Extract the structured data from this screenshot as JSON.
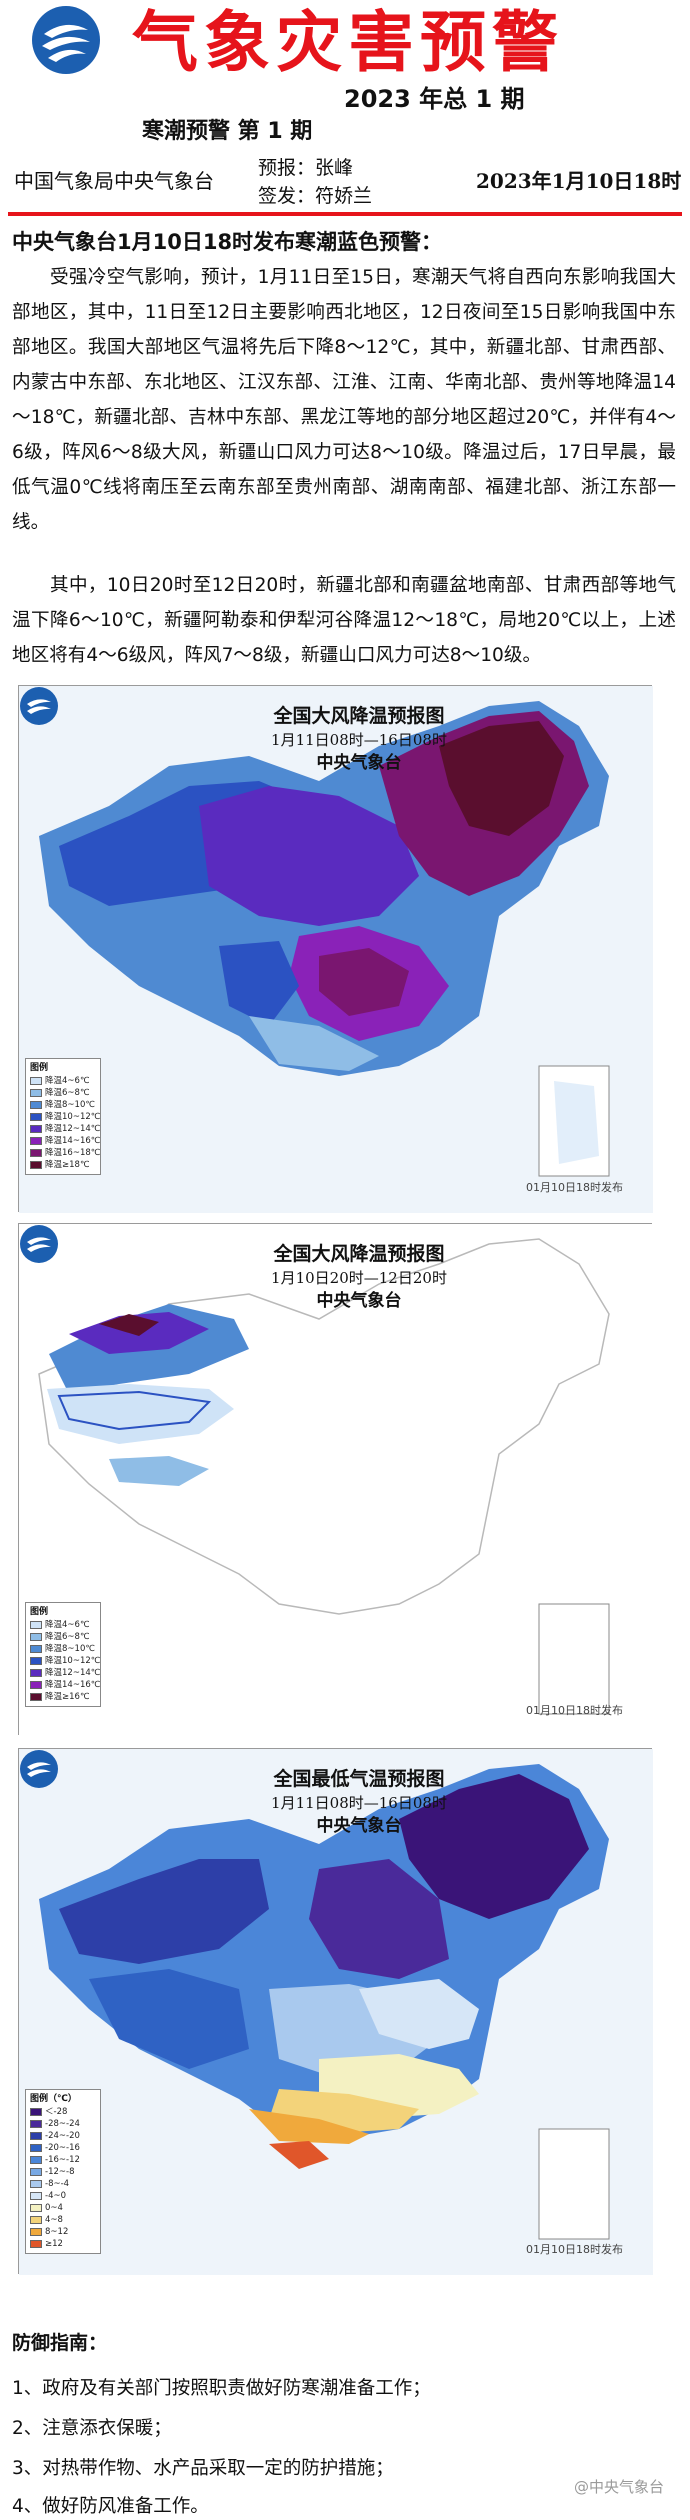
{
  "header": {
    "title": "气象灾害预警",
    "issue_year": "2023 年总 1 期",
    "issue_sub": "寒潮预警 第 1 期",
    "org": "中国气象局中央气象台",
    "forecaster": "预报：张峰",
    "signer": "签发：符娇兰",
    "date": "2023年1月10日18时",
    "brand_color": "#e6141b"
  },
  "headline": "中央气象台1月10日18时发布寒潮蓝色预警：",
  "paragraphs": [
    "受强冷空气影响，预计，1月11日至15日，寒潮天气将自西向东影响我国大部地区，其中，11日至12日主要影响西北地区，12日夜间至15日影响我国中东部地区。我国大部地区气温将先后下降8～12℃，其中，新疆北部、甘肃西部、内蒙古中东部、东北地区、江汉东部、江淮、江南、华南北部、贵州等地降温14～18℃，新疆北部、吉林中东部、黑龙江等地的部分地区超过20℃，并伴有4～6级，阵风6～8级大风，新疆山口风力可达8～10级。降温过后，17日早晨，最低气温0℃线将南压至云南东部至贵州南部、湖南南部、福建北部、浙江东部一线。",
    "其中，10日20时至12日20时，新疆北部和南疆盆地南部、甘肃西部等地气温下降6～10℃，新疆阿勒泰和伊犁河谷降温12～18℃，局地20℃以上，上述地区将有4～6级风，阵风7～8级，新疆山口风力可达8～10级。"
  ],
  "maps": [
    {
      "title": "全国大风降温预报图",
      "period": "1月11日08时—16日08时",
      "source": "中央气象台",
      "issued": "01月10日18时发布",
      "legend_title": "图例",
      "legend": [
        {
          "label": "降温4~6℃",
          "color": "#cfe3f7"
        },
        {
          "label": "降温6~8℃",
          "color": "#8fbde6"
        },
        {
          "label": "降温8~10℃",
          "color": "#4f8ad2"
        },
        {
          "label": "降温10~12℃",
          "color": "#2b52c2"
        },
        {
          "label": "降温12~14℃",
          "color": "#5a2bbf"
        },
        {
          "label": "降温14~16℃",
          "color": "#8a22b8"
        },
        {
          "label": "降温16~18℃",
          "color": "#7a1670"
        },
        {
          "label": "降温≥18℃",
          "color": "#5a0e2e"
        }
      ]
    },
    {
      "title": "全国大风降温预报图",
      "period": "1月10日20时—12日20时",
      "source": "中央气象台",
      "issued": "01月10日18时发布",
      "legend_title": "图例",
      "legend": [
        {
          "label": "降温4~6℃",
          "color": "#cfe3f7"
        },
        {
          "label": "降温6~8℃",
          "color": "#8fbde6"
        },
        {
          "label": "降温8~10℃",
          "color": "#4f8ad2"
        },
        {
          "label": "降温10~12℃",
          "color": "#2b52c2"
        },
        {
          "label": "降温12~14℃",
          "color": "#5a2bbf"
        },
        {
          "label": "降温14~16℃",
          "color": "#8a22b8"
        },
        {
          "label": "降温≥16℃",
          "color": "#5a0e2e"
        }
      ]
    },
    {
      "title": "全国最低气温预报图",
      "period": "1月11日08时—16日08时",
      "source": "中央气象台",
      "issued": "01月10日18时发布",
      "legend_title": "图例（℃）",
      "legend": [
        {
          "label": "＜-28",
          "color": "#3a1478"
        },
        {
          "label": "-28~-24",
          "color": "#4a2a9a"
        },
        {
          "label": "-24~-20",
          "color": "#2d3fa8"
        },
        {
          "label": "-20~-16",
          "color": "#2f62c4"
        },
        {
          "label": "-16~-12",
          "color": "#4b86d8"
        },
        {
          "label": "-12~-8",
          "color": "#79a9e4"
        },
        {
          "label": "-8~-4",
          "color": "#a9c9ee"
        },
        {
          "label": "-4~0",
          "color": "#d6e6f7"
        },
        {
          "label": "0~4",
          "color": "#f4f1c2"
        },
        {
          "label": "4~8",
          "color": "#f3d37a"
        },
        {
          "label": "8~12",
          "color": "#f0a93c"
        },
        {
          "label": "≥12",
          "color": "#e0562a"
        }
      ]
    }
  ],
  "guide": {
    "title": "防御指南：",
    "items": [
      "1、政府及有关部门按照职责做好防寒潮准备工作；",
      "2、注意添衣保暖；",
      "3、对热带作物、水产品采取一定的防护措施；",
      "4、做好防风准备工作。"
    ]
  },
  "watermark": "@中央气象台"
}
